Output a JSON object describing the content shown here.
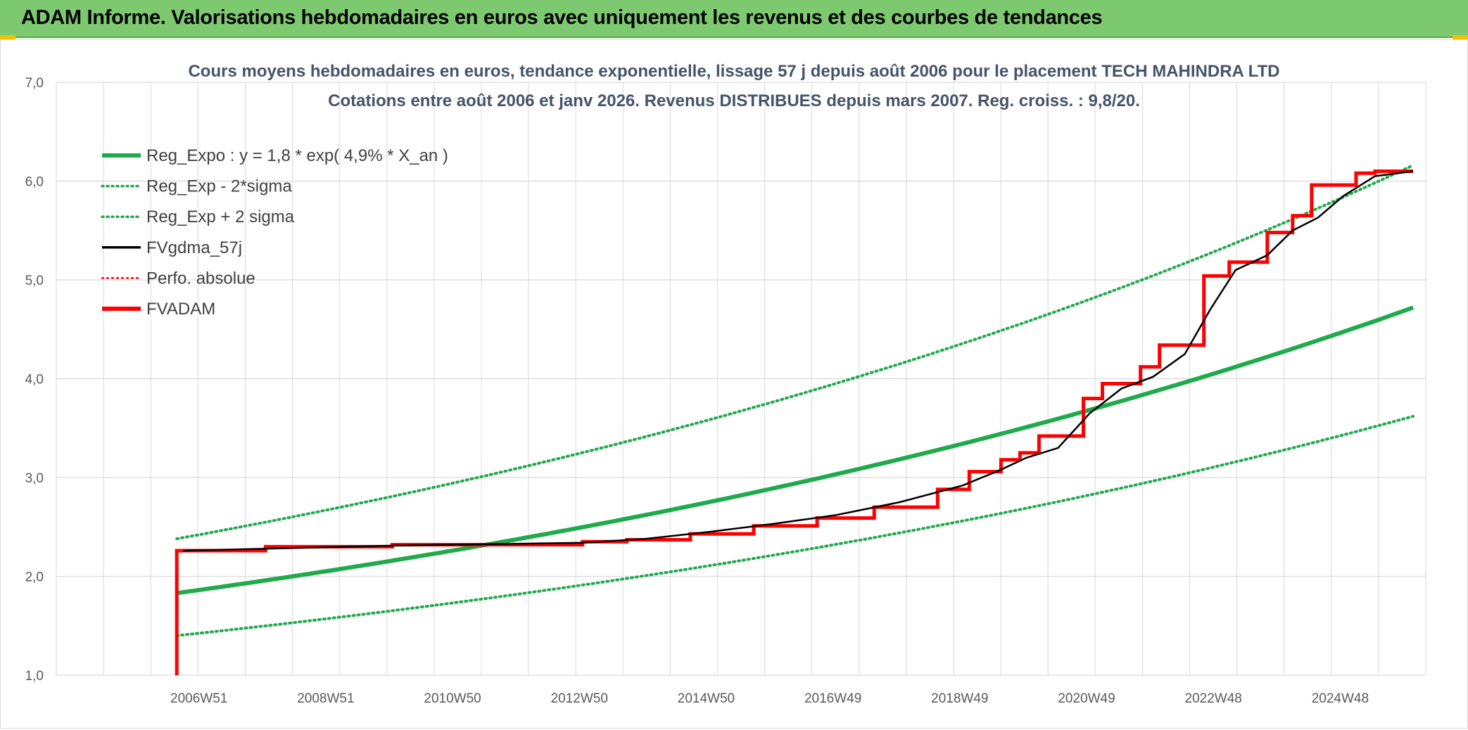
{
  "banner": {
    "title": "ADAM Informe. Valorisations hebdomadaires en euros avec uniquement les revenus et des courbes de tendances"
  },
  "colors": {
    "banner_bg": "#7dc96f",
    "reg_expo": "#1faa4b",
    "fvgdma": "#000000",
    "fvadam": "#ff0000",
    "perfo": "#ff0000",
    "title_text": "#44546a",
    "grid": "#d9d9d9"
  },
  "chart_data": {
    "type": "line",
    "title_line1": "Cours moyens hebdomadaires en euros, tendance exponentielle, lissage 57 j depuis août 2006 pour le placement TECH MAHINDRA LTD",
    "title_line2": "Cotations entre août 2006 et janv 2026. Revenus DISTRIBUES depuis mars 2007. Reg. croiss. : 9,8/20.",
    "ylim": [
      1.0,
      7.0
    ],
    "y_ticks": [
      "1,0",
      "2,0",
      "3,0",
      "4,0",
      "5,0",
      "6,0",
      "7,0"
    ],
    "x_ticks": [
      "2006W51",
      "2008W51",
      "2010W50",
      "2012W50",
      "2014W50",
      "2016W49",
      "2018W49",
      "2020W49",
      "2022W48",
      "2024W48"
    ],
    "grid": true,
    "legend_position": "top-left",
    "legend": [
      {
        "label": "Reg_Expo : y = 1,8 * exp( 4,9% *  X_an )",
        "style": "solid-thick",
        "color": "#1faa4b"
      },
      {
        "label": "Reg_Exp - 2*sigma",
        "style": "dotted",
        "color": "#1faa4b"
      },
      {
        "label": "Reg_Exp + 2 sigma",
        "style": "dotted",
        "color": "#1faa4b"
      },
      {
        "label": "FVgdma_57j",
        "style": "solid",
        "color": "#000000"
      },
      {
        "label": "Perfo. absolue",
        "style": "dotted",
        "color": "#ff0000"
      },
      {
        "label": "FVADAM",
        "style": "solid-thick",
        "color": "#ff0000"
      }
    ],
    "series": [
      {
        "name": "Reg_Expo : y = 1,8 * exp( 4,9% *  X_an )",
        "x": [
          2006.6,
          2010,
          2014,
          2018,
          2022,
          2026.1
        ],
        "y": [
          1.83,
          2.21,
          2.69,
          3.26,
          3.98,
          4.72
        ]
      },
      {
        "name": "Reg_Exp - 2*sigma",
        "x": [
          2006.6,
          2010,
          2014,
          2018,
          2022,
          2026.1
        ],
        "y": [
          1.4,
          1.68,
          2.04,
          2.48,
          3.02,
          3.62
        ]
      },
      {
        "name": "Reg_Exp + 2 sigma",
        "x": [
          2006.6,
          2010,
          2014,
          2018,
          2022,
          2026.1
        ],
        "y": [
          2.38,
          2.87,
          3.5,
          4.25,
          5.18,
          6.16
        ]
      },
      {
        "name": "FVADAM",
        "x": [
          2006.6,
          2006.6,
          2008.0,
          2008.0,
          2010.0,
          2010.0,
          2013.0,
          2013.0,
          2013.7,
          2013.7,
          2014.7,
          2014.7,
          2015.7,
          2015.7,
          2016.7,
          2016.7,
          2017.6,
          2017.6,
          2018.6,
          2018.6,
          2019.1,
          2019.1,
          2019.6,
          2019.6,
          2019.9,
          2019.9,
          2020.2,
          2020.2,
          2020.9,
          2020.9,
          2021.2,
          2021.2,
          2021.8,
          2021.8,
          2022.1,
          2022.1,
          2022.8,
          2022.8,
          2023.2,
          2023.2,
          2023.8,
          2023.8,
          2024.2,
          2024.2,
          2024.5,
          2024.5,
          2025.2,
          2025.2,
          2025.5,
          2025.5,
          2026.1
        ],
        "y": [
          1.0,
          2.26,
          2.26,
          2.3,
          2.3,
          2.32,
          2.32,
          2.35,
          2.35,
          2.37,
          2.37,
          2.43,
          2.43,
          2.51,
          2.51,
          2.59,
          2.59,
          2.7,
          2.7,
          2.88,
          2.88,
          3.06,
          3.06,
          3.18,
          3.18,
          3.25,
          3.25,
          3.42,
          3.42,
          3.8,
          3.8,
          3.95,
          3.95,
          4.12,
          4.12,
          4.34,
          4.34,
          5.04,
          5.04,
          5.18,
          5.18,
          5.48,
          5.48,
          5.65,
          5.65,
          5.96,
          5.96,
          6.08,
          6.08,
          6.1,
          6.1
        ]
      },
      {
        "name": "FVgdma_57j",
        "x": [
          2006.7,
          2008.0,
          2010.0,
          2013.0,
          2014.0,
          2015.0,
          2016.0,
          2017.0,
          2018.0,
          2019.0,
          2019.6,
          2020.0,
          2020.5,
          2021.0,
          2021.5,
          2022.0,
          2022.5,
          2022.9,
          2023.3,
          2023.8,
          2024.2,
          2024.6,
          2025.0,
          2025.5,
          2026.1
        ],
        "y": [
          2.26,
          2.28,
          2.31,
          2.34,
          2.38,
          2.45,
          2.53,
          2.62,
          2.75,
          2.92,
          3.08,
          3.2,
          3.3,
          3.65,
          3.9,
          4.02,
          4.25,
          4.7,
          5.1,
          5.25,
          5.5,
          5.63,
          5.85,
          6.05,
          6.1
        ]
      }
    ]
  }
}
